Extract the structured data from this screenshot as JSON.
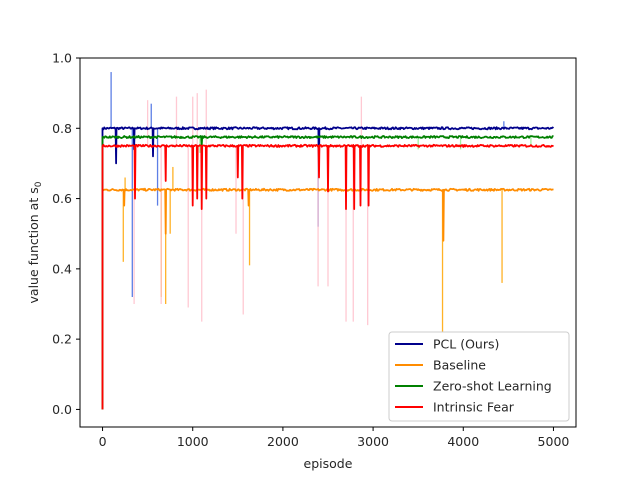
{
  "chart_data": {
    "type": "line",
    "xlabel": "episode",
    "ylabel": "value function at s",
    "ylabel_subscript": "0",
    "xlim": [
      -250,
      5250
    ],
    "ylim": [
      -0.05,
      1.0
    ],
    "xticks": [
      0,
      1000,
      2000,
      3000,
      4000,
      5000
    ],
    "yticks": [
      0.0,
      0.2,
      0.4,
      0.6,
      0.8,
      1.0
    ],
    "legend_position": "lower-right",
    "series": [
      {
        "name": "PCL (Ours)",
        "color": "#00008b",
        "shade_color": "#4169e1",
        "plateau": 0.8,
        "raw_x": [
          95,
          330,
          540,
          610,
          2390,
          4450
        ],
        "raw_y": [
          0.96,
          0.32,
          0.87,
          0.58,
          0.52,
          0.82
        ],
        "mean_x": [
          150,
          350,
          560,
          2400
        ],
        "mean_y": [
          0.7,
          0.74,
          0.72,
          0.7
        ]
      },
      {
        "name": "Baseline",
        "color": "#ff8c00",
        "shade_color": "#ffa500",
        "plateau": 0.625,
        "raw_x": [
          230,
          250,
          650,
          700,
          750,
          780,
          1630,
          3770,
          4430
        ],
        "raw_y": [
          0.42,
          0.66,
          0.32,
          0.3,
          0.5,
          0.69,
          0.41,
          0.22,
          0.36
        ],
        "mean_x": [
          240,
          700,
          1620,
          3780
        ],
        "mean_y": [
          0.58,
          0.5,
          0.58,
          0.48
        ]
      },
      {
        "name": "Zero-shot Learning",
        "color": "#008000",
        "shade_color": "#90ee90",
        "plateau": 0.775,
        "raw_x": [
          1080,
          3500,
          3970,
          4750
        ],
        "raw_y": [
          0.73,
          0.74,
          0.74,
          0.75
        ],
        "mean_x": [
          1100
        ],
        "mean_y": [
          0.75
        ]
      },
      {
        "name": "Intrinsic Fear",
        "color": "#ff0000",
        "shade_color": "#ffc0cb",
        "plateau": 0.75,
        "raw_x": [
          350,
          500,
          650,
          820,
          950,
          1000,
          1050,
          1100,
          1150,
          1480,
          1560,
          2390,
          2500,
          2700,
          2780,
          2870,
          2940
        ],
        "raw_y": [
          0.3,
          0.88,
          0.3,
          0.89,
          0.29,
          0.89,
          0.9,
          0.25,
          0.91,
          0.5,
          0.27,
          0.35,
          0.35,
          0.25,
          0.25,
          0.89,
          0.24
        ],
        "mean_x": [
          360,
          700,
          1000,
          1050,
          1100,
          1150,
          1500,
          1550,
          2400,
          2500,
          2700,
          2790,
          2860,
          2950
        ],
        "mean_y": [
          0.6,
          0.65,
          0.58,
          0.6,
          0.57,
          0.6,
          0.66,
          0.6,
          0.66,
          0.62,
          0.57,
          0.57,
          0.58,
          0.58
        ]
      }
    ]
  }
}
